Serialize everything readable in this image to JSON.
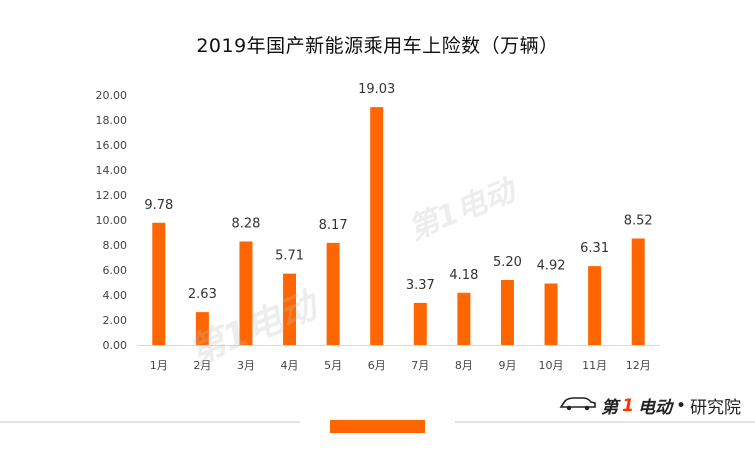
{
  "chart_data": {
    "type": "bar",
    "title": "2019年国产新能源乘用车上险数（万辆）",
    "categories": [
      "1月",
      "2月",
      "3月",
      "4月",
      "5月",
      "6月",
      "7月",
      "8月",
      "9月",
      "10月",
      "11月",
      "12月"
    ],
    "values": [
      9.78,
      2.63,
      8.28,
      5.71,
      8.17,
      19.03,
      3.37,
      4.18,
      5.2,
      4.92,
      6.31,
      8.52
    ],
    "value_labels": [
      "9.78",
      "2.63",
      "8.28",
      "5.71",
      "8.17",
      "19.03",
      "3.37",
      "4.18",
      "5.20",
      "4.92",
      "6.31",
      "8.52"
    ],
    "ylim": [
      0,
      20
    ],
    "yticks": [
      "0.00",
      "2.00",
      "4.00",
      "6.00",
      "8.00",
      "10.00",
      "12.00",
      "14.00",
      "16.00",
      "18.00",
      "20.00"
    ],
    "xlabel": "",
    "ylabel": "",
    "grid": false,
    "bar_color": "#ff6600"
  },
  "watermark": {
    "text": "第1电动"
  },
  "footer": {
    "brand_mark": "第",
    "brand_one": "1",
    "brand_rest": "电动",
    "dot": "•",
    "institute": "研究院",
    "accent_color": "#ff6600"
  }
}
